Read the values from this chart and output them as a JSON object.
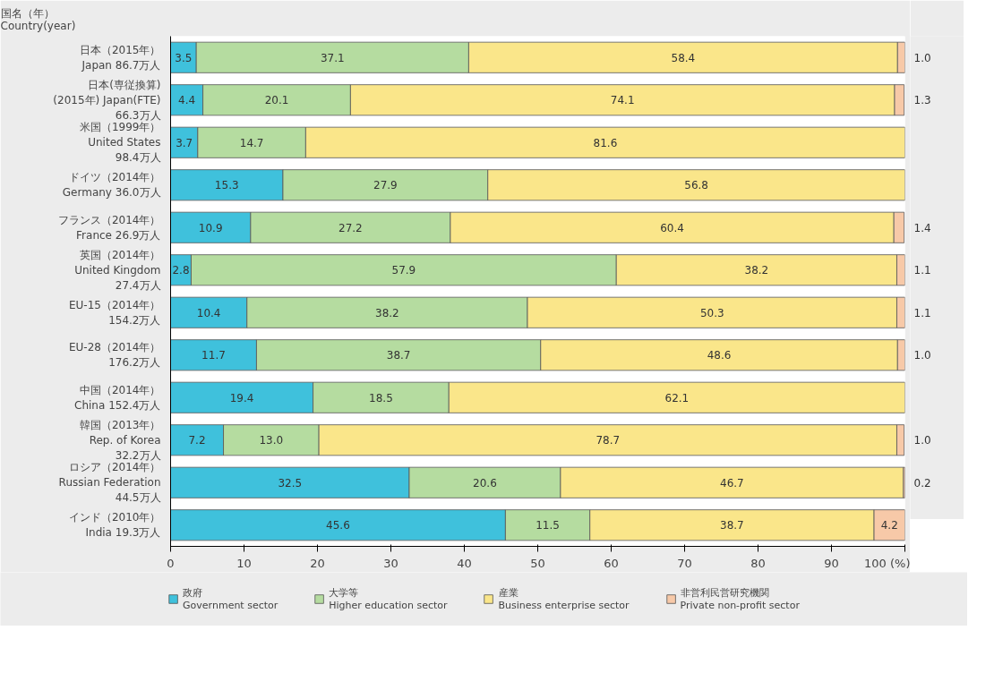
{
  "chart_data": {
    "type": "bar",
    "orientation": "horizontal",
    "stacked": true,
    "ylabel": "国名（年）\nCountry(year)",
    "categories": [
      "日本（2015年）\nJapan 86.7万人",
      "日本(専従換算)\n(2015年) Japan(FTE)\n66.3万人",
      "米国（1999年）\nUnited States\n98.4万人",
      "ドイツ（2014年）\nGermany 36.0万人",
      "フランス（2014年）\nFrance 26.9万人",
      "英国（2014年）\nUnited Kingdom\n27.4万人",
      "EU-15（2014年）\n154.2万人",
      "EU-28（2014年）\n176.2万人",
      "中国（2014年）\nChina 152.4万人",
      "韓国（2013年）\nRep. of Korea\n32.2万人",
      "ロシア（2014年）\nRussian Federation\n44.5万人",
      "インド（2010年）\nIndia 19.3万人"
    ],
    "series": [
      {
        "name": "政府\nGovernment sector",
        "color": "#3fc1dc",
        "values": [
          3.5,
          4.4,
          3.7,
          15.3,
          10.9,
          2.8,
          10.4,
          11.7,
          19.4,
          7.2,
          32.5,
          45.6
        ],
        "value_labels": [
          "3.5",
          "4.4",
          "3.7",
          "15.3",
          "10.9",
          "2.8",
          "10.4",
          "11.7",
          "19.4",
          "7.2",
          "32.5",
          "45.6"
        ]
      },
      {
        "name": "大学等\nHigher education sector",
        "color": "#b5dca0",
        "values": [
          37.1,
          20.1,
          14.7,
          27.9,
          27.2,
          57.9,
          38.2,
          38.7,
          18.5,
          13.0,
          20.6,
          11.5
        ],
        "value_labels": [
          "37.1",
          "20.1",
          "14.7",
          "27.9",
          "27.2",
          "57.9",
          "38.2",
          "38.7",
          "18.5",
          "13.0",
          "20.6",
          "11.5"
        ]
      },
      {
        "name": "産業\nBusiness enterprise sector",
        "color": "#fae68a",
        "values": [
          58.4,
          74.1,
          81.6,
          56.8,
          60.4,
          38.2,
          50.3,
          48.6,
          62.1,
          78.7,
          46.7,
          38.7
        ],
        "value_labels": [
          "58.4",
          "74.1",
          "81.6",
          "56.8",
          "60.4",
          "38.2",
          "50.3",
          "48.6",
          "62.1",
          "78.7",
          "46.7",
          "38.7"
        ]
      },
      {
        "name": "非営利民営研究機関\nPrivate non-profit sector",
        "color": "#f7c9a8",
        "values": [
          1.0,
          1.3,
          null,
          null,
          1.4,
          1.1,
          1.1,
          1.0,
          null,
          1.0,
          0.2,
          4.2
        ],
        "value_labels": [
          "1.0",
          "1.3",
          null,
          null,
          "1.4",
          "1.1",
          "1.1",
          "1.0",
          null,
          "1.0",
          "0.2",
          "4.2"
        ]
      }
    ],
    "xlim": [
      0,
      100
    ],
    "xticks": [
      0,
      10,
      20,
      30,
      40,
      50,
      60,
      70,
      80,
      90,
      {
        "value": 100,
        "label": "100 (%)"
      }
    ],
    "grid": false,
    "legend": "bottom"
  }
}
